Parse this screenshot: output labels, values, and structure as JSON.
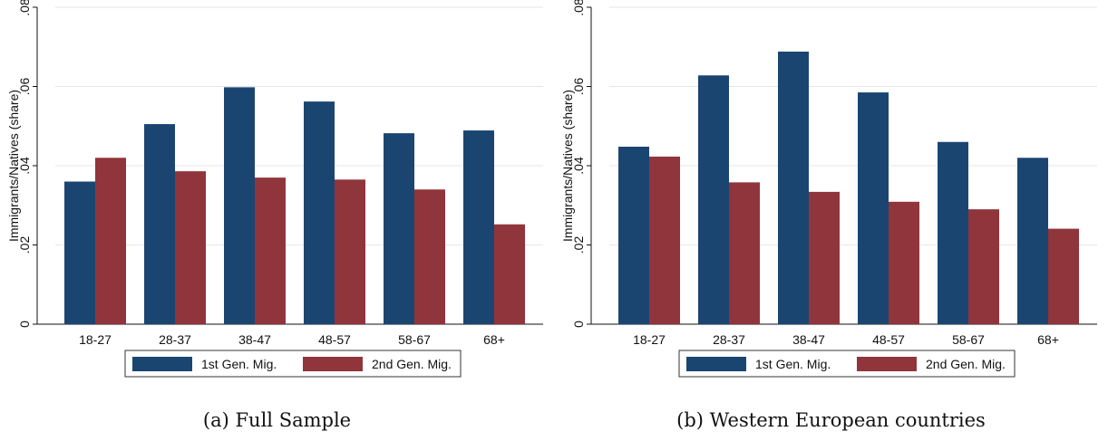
{
  "chart_data": [
    {
      "type": "bar",
      "caption_label": "(a)",
      "caption": "Full Sample",
      "ylabel": "Immigrants/Natives (share)",
      "categories": [
        "18-27",
        "28-37",
        "38-47",
        "48-57",
        "58-67",
        "68+"
      ],
      "series": [
        {
          "name": "1st Gen. Mig.",
          "color": "#1b4571",
          "values": [
            0.036,
            0.0505,
            0.0598,
            0.0562,
            0.0482,
            0.0489
          ]
        },
        {
          "name": "2nd Gen. Mig.",
          "color": "#90353b",
          "values": [
            0.042,
            0.0386,
            0.037,
            0.0365,
            0.034,
            0.0252
          ]
        }
      ],
      "ylim": [
        0,
        0.08
      ],
      "yticks": [
        0,
        0.02,
        0.04,
        0.06,
        0.08
      ],
      "ytick_labels": [
        "0",
        ".02",
        ".04",
        ".06",
        ".08"
      ],
      "grid": true,
      "legend_position": "bottom"
    },
    {
      "type": "bar",
      "caption_label": "(b)",
      "caption": "Western European countries",
      "ylabel": "Immigrants/Natives (share)",
      "categories": [
        "18-27",
        "28-37",
        "38-47",
        "48-57",
        "58-67",
        "68+"
      ],
      "series": [
        {
          "name": "1st Gen. Mig.",
          "color": "#1b4571",
          "values": [
            0.0448,
            0.0628,
            0.0688,
            0.0585,
            0.046,
            0.042
          ]
        },
        {
          "name": "2nd Gen. Mig.",
          "color": "#90353b",
          "values": [
            0.0423,
            0.0358,
            0.0334,
            0.0309,
            0.029,
            0.0241
          ]
        }
      ],
      "ylim": [
        0,
        0.08
      ],
      "yticks": [
        0,
        0.02,
        0.04,
        0.06,
        0.08
      ],
      "ytick_labels": [
        "0",
        ".02",
        ".04",
        ".06",
        ".08"
      ],
      "grid": true,
      "legend_position": "bottom"
    }
  ]
}
